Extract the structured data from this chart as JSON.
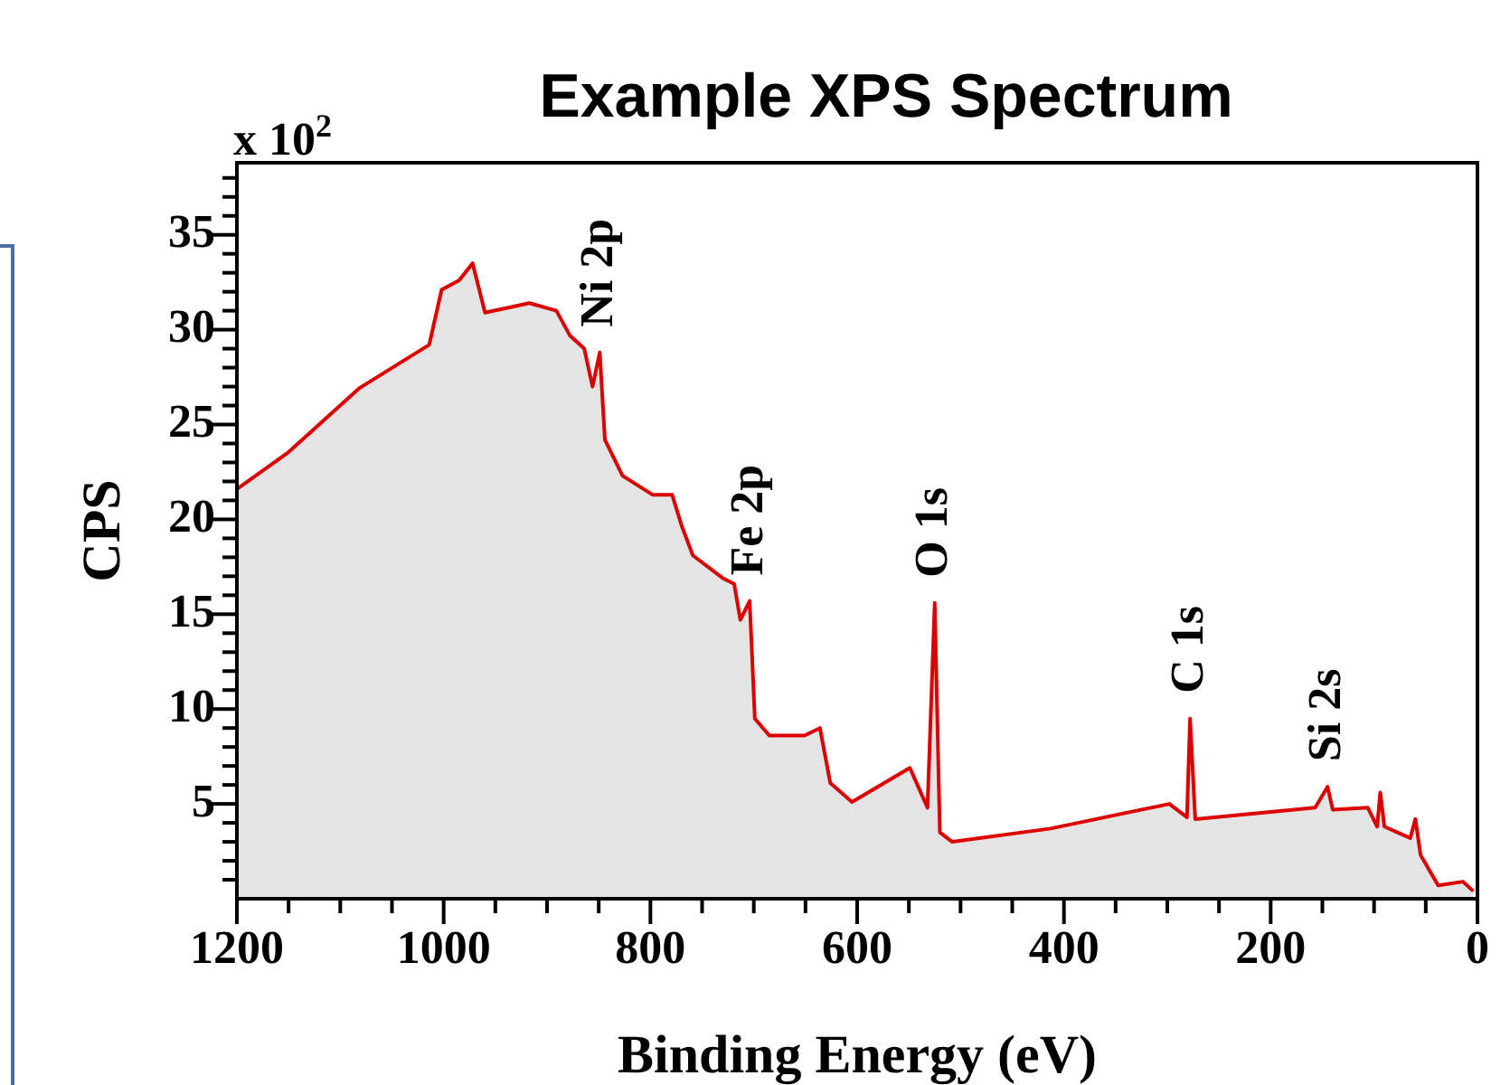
{
  "chart_data": {
    "type": "area",
    "title": "Example XPS Spectrum",
    "xlabel": "Binding Energy (eV)",
    "ylabel": "CPS",
    "x": [
      1200,
      1151,
      1082,
      1014,
      1002,
      985,
      972,
      960,
      917,
      891,
      878,
      864,
      856,
      849,
      844,
      827,
      798,
      779,
      770,
      759,
      730,
      719,
      713,
      704,
      699,
      685,
      651,
      636,
      626,
      605,
      549,
      532,
      525,
      520,
      508,
      413,
      298,
      281,
      278,
      273,
      157,
      145,
      140,
      106,
      97,
      94,
      90,
      65,
      60,
      55,
      38,
      14,
      4
    ],
    "series": [
      {
        "color": "#dd0000",
        "values": [
          21.6,
          23.5,
          26.9,
          29.2,
          32.1,
          32.6,
          33.5,
          30.9,
          31.4,
          31.0,
          29.7,
          29.0,
          27.0,
          28.8,
          24.2,
          22.3,
          21.3,
          21.3,
          19.7,
          18.1,
          16.9,
          16.6,
          14.7,
          15.7,
          9.5,
          8.6,
          8.6,
          9.0,
          6.1,
          5.1,
          6.9,
          4.8,
          15.6,
          3.5,
          3.0,
          3.7,
          5.0,
          4.3,
          9.5,
          4.2,
          4.8,
          5.9,
          4.7,
          4.8,
          3.8,
          5.6,
          3.8,
          3.2,
          4.2,
          2.3,
          0.7,
          0.9,
          0.4
        ]
      }
    ],
    "xlim": [
      1200,
      0
    ],
    "xticks": [
      0,
      {
        "value": 50,
        "label": null
      },
      200,
      {
        "value": 150,
        "label": null
      },
      {
        "value": 100,
        "label": null
      },
      {
        "value": 250,
        "label": null
      },
      400,
      {
        "value": 300,
        "label": null
      },
      {
        "value": 350,
        "label": null
      },
      {
        "value": 450,
        "label": null
      },
      600,
      {
        "value": 500,
        "label": null
      },
      {
        "value": 550,
        "label": null
      },
      {
        "value": 650,
        "label": null
      },
      800,
      {
        "value": 700,
        "label": null
      },
      {
        "value": 750,
        "label": null
      },
      {
        "value": 850,
        "label": null
      },
      1000,
      {
        "value": 900,
        "label": null
      },
      {
        "value": 950,
        "label": null
      },
      {
        "value": 1050,
        "label": null
      },
      1200,
      {
        "value": 1100,
        "label": null
      },
      {
        "value": 1150,
        "label": null
      }
    ],
    "ylim": [
      0,
      38.8
    ],
    "yticks": [
      {
        "value": 1,
        "label": null
      },
      {
        "value": 2,
        "label": null
      },
      {
        "value": 3,
        "label": null
      },
      {
        "value": 4,
        "label": null
      },
      5,
      {
        "value": 6,
        "label": null
      },
      {
        "value": 7,
        "label": null
      },
      {
        "value": 8,
        "label": null
      },
      {
        "value": 9,
        "label": null
      },
      10,
      {
        "value": 11,
        "label": null
      },
      {
        "value": 12,
        "label": null
      },
      {
        "value": 13,
        "label": null
      },
      {
        "value": 14,
        "label": null
      },
      15,
      {
        "value": 16,
        "label": null
      },
      {
        "value": 17,
        "label": null
      },
      {
        "value": 18,
        "label": null
      },
      {
        "value": 19,
        "label": null
      },
      20,
      {
        "value": 21,
        "label": null
      },
      {
        "value": 22,
        "label": null
      },
      {
        "value": 23,
        "label": null
      },
      {
        "value": 24,
        "label": null
      },
      25,
      {
        "value": 26,
        "label": null
      },
      {
        "value": 27,
        "label": null
      },
      {
        "value": 28,
        "label": null
      },
      {
        "value": 29,
        "label": null
      },
      30,
      {
        "value": 31,
        "label": null
      },
      {
        "value": 32,
        "label": null
      },
      {
        "value": 33,
        "label": null
      },
      {
        "value": 34,
        "label": null
      },
      35,
      {
        "value": 36,
        "label": null
      },
      {
        "value": 37,
        "label": null
      },
      {
        "value": 38,
        "label": null
      }
    ],
    "annotations": [
      "x 10$^{2}$",
      {
        "text": "Ni 2p",
        "x": 849,
        "y": 28.8
      },
      {
        "text": "Fe 2p",
        "x": 704,
        "y": 15.7
      },
      {
        "text": "O 1s",
        "x": 525,
        "y": 15.6
      },
      {
        "text": "C 1s",
        "x": 278,
        "y": 9.5
      },
      {
        "text": "Si 2s",
        "x": 145,
        "y": 5.9
      }
    ]
  }
}
